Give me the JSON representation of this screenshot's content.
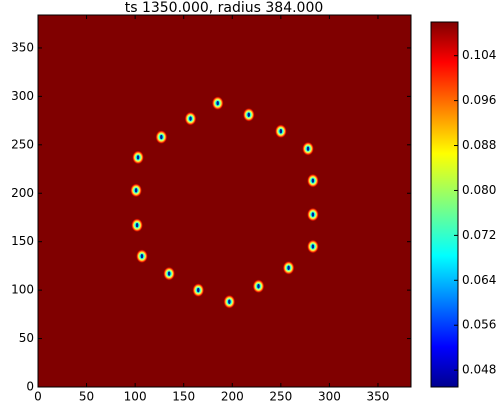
{
  "chart_data": {
    "type": "heatmap",
    "title": "ts 1350.000, radius 384.000",
    "background_color": "#800000",
    "colormap": "jet",
    "spots": {
      "x": [
        185,
        217,
        250,
        278,
        283,
        283,
        283,
        258,
        227,
        197,
        165,
        135,
        107,
        102,
        101,
        103,
        127,
        157
      ],
      "y": [
        293,
        281,
        264,
        246,
        213,
        178,
        145,
        123,
        104,
        88,
        100,
        117,
        135,
        167,
        203,
        237,
        258,
        277
      ]
    },
    "xlim": [
      0,
      384
    ],
    "ylim": [
      0,
      384
    ],
    "xticks": [
      0,
      50,
      100,
      150,
      200,
      250,
      300,
      350
    ],
    "yticks": [
      0,
      50,
      100,
      150,
      200,
      250,
      300,
      350
    ],
    "clim": [
      0.045,
      0.11
    ],
    "cticks": [
      0.048,
      0.056,
      0.064,
      0.072,
      {
        "value": 0.08,
        "label": "0.080"
      },
      0.088,
      0.096,
      0.104
    ]
  }
}
